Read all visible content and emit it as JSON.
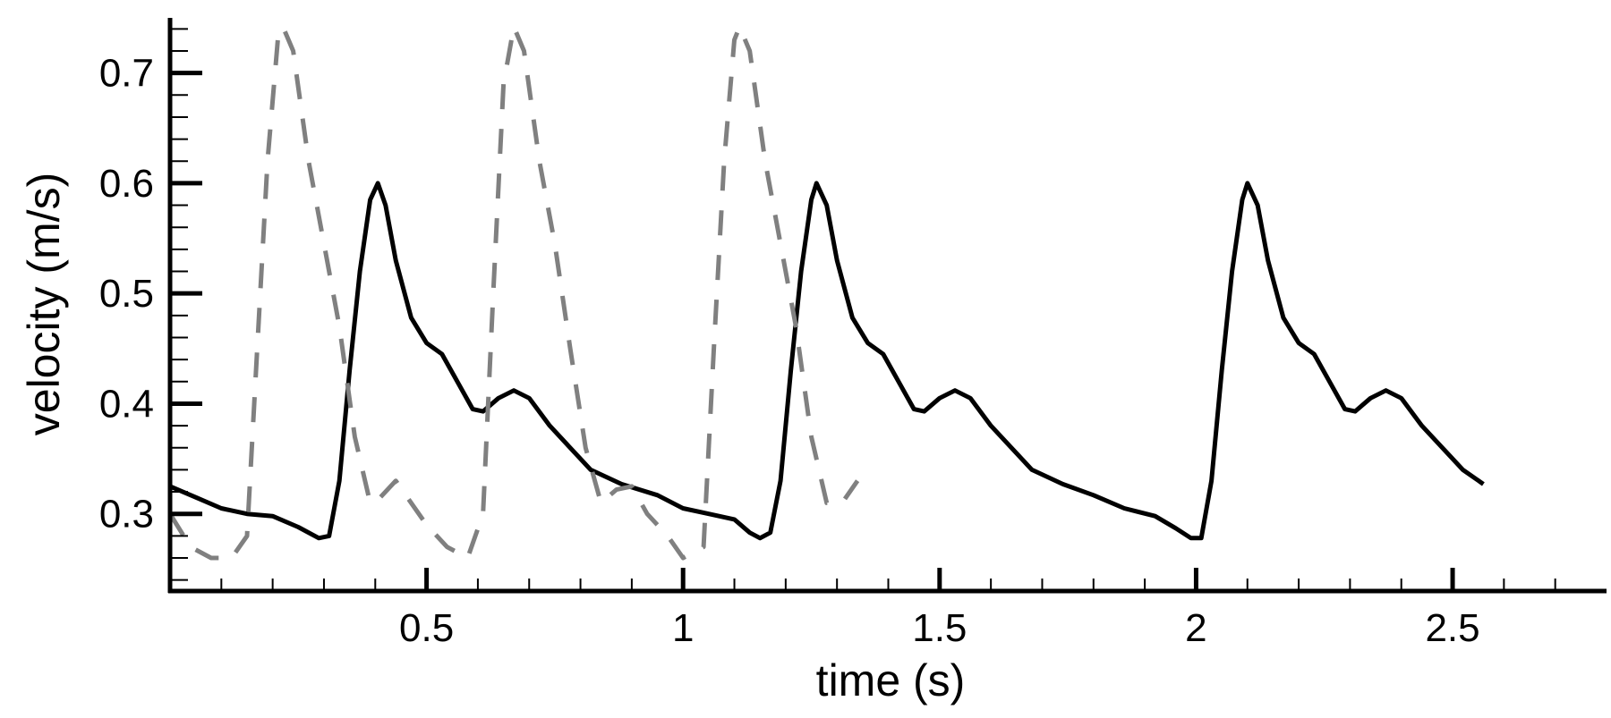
{
  "chart_data": {
    "type": "line",
    "title": "",
    "xlabel": "time (s)",
    "ylabel": "velocity (m/s)",
    "xlim": [
      0,
      2.8
    ],
    "ylim": [
      0.23,
      0.75
    ],
    "grid": false,
    "x_ticks": [
      {
        "value": 0.5,
        "label": "0.5"
      },
      {
        "value": 1,
        "label": "1"
      },
      {
        "value": 1.5,
        "label": "1.5"
      },
      {
        "value": 2,
        "label": "2"
      },
      {
        "value": 2.5,
        "label": "2.5"
      }
    ],
    "y_ticks": [
      {
        "value": 0.3,
        "label": "0.3"
      },
      {
        "value": 0.4,
        "label": "0.4"
      },
      {
        "value": 0.5,
        "label": "0.5"
      },
      {
        "value": 0.6,
        "label": "0.6"
      },
      {
        "value": 0.7,
        "label": "0.7"
      }
    ],
    "series": [
      {
        "style": "solid",
        "color": "#000000",
        "points": [
          [
            0.0,
            0.325
          ],
          [
            0.05,
            0.315
          ],
          [
            0.1,
            0.305
          ],
          [
            0.15,
            0.3
          ],
          [
            0.2,
            0.298
          ],
          [
            0.25,
            0.288
          ],
          [
            0.29,
            0.278
          ],
          [
            0.31,
            0.28
          ],
          [
            0.33,
            0.33
          ],
          [
            0.35,
            0.43
          ],
          [
            0.37,
            0.52
          ],
          [
            0.39,
            0.585
          ],
          [
            0.405,
            0.6
          ],
          [
            0.42,
            0.58
          ],
          [
            0.44,
            0.53
          ],
          [
            0.47,
            0.478
          ],
          [
            0.5,
            0.455
          ],
          [
            0.53,
            0.445
          ],
          [
            0.56,
            0.42
          ],
          [
            0.59,
            0.395
          ],
          [
            0.61,
            0.393
          ],
          [
            0.64,
            0.405
          ],
          [
            0.67,
            0.412
          ],
          [
            0.7,
            0.405
          ],
          [
            0.74,
            0.38
          ],
          [
            0.78,
            0.36
          ],
          [
            0.82,
            0.34
          ],
          [
            0.88,
            0.327
          ],
          [
            0.95,
            0.317
          ],
          [
            1.0,
            0.305
          ],
          [
            1.05,
            0.3
          ],
          [
            1.1,
            0.295
          ],
          [
            1.13,
            0.283
          ],
          [
            1.15,
            0.278
          ],
          [
            1.17,
            0.283
          ],
          [
            1.19,
            0.33
          ],
          [
            1.21,
            0.43
          ],
          [
            1.23,
            0.52
          ],
          [
            1.25,
            0.585
          ],
          [
            1.26,
            0.6
          ],
          [
            1.28,
            0.58
          ],
          [
            1.3,
            0.53
          ],
          [
            1.33,
            0.478
          ],
          [
            1.36,
            0.455
          ],
          [
            1.39,
            0.445
          ],
          [
            1.42,
            0.42
          ],
          [
            1.45,
            0.395
          ],
          [
            1.47,
            0.393
          ],
          [
            1.5,
            0.405
          ],
          [
            1.53,
            0.412
          ],
          [
            1.56,
            0.405
          ],
          [
            1.6,
            0.38
          ],
          [
            1.64,
            0.36
          ],
          [
            1.68,
            0.34
          ],
          [
            1.74,
            0.327
          ],
          [
            1.8,
            0.317
          ],
          [
            1.86,
            0.305
          ],
          [
            1.92,
            0.298
          ],
          [
            1.96,
            0.287
          ],
          [
            1.99,
            0.278
          ],
          [
            2.01,
            0.278
          ],
          [
            2.03,
            0.33
          ],
          [
            2.05,
            0.43
          ],
          [
            2.07,
            0.52
          ],
          [
            2.09,
            0.585
          ],
          [
            2.1,
            0.6
          ],
          [
            2.12,
            0.58
          ],
          [
            2.14,
            0.53
          ],
          [
            2.17,
            0.478
          ],
          [
            2.2,
            0.455
          ],
          [
            2.23,
            0.445
          ],
          [
            2.26,
            0.42
          ],
          [
            2.29,
            0.395
          ],
          [
            2.31,
            0.393
          ],
          [
            2.34,
            0.405
          ],
          [
            2.37,
            0.412
          ],
          [
            2.4,
            0.405
          ],
          [
            2.44,
            0.38
          ],
          [
            2.48,
            0.36
          ],
          [
            2.52,
            0.34
          ],
          [
            2.56,
            0.327
          ]
        ]
      },
      {
        "style": "dashed",
        "color": "#808080",
        "points": [
          [
            0.0,
            0.3
          ],
          [
            0.04,
            0.27
          ],
          [
            0.08,
            0.26
          ],
          [
            0.12,
            0.26
          ],
          [
            0.15,
            0.28
          ],
          [
            0.17,
            0.45
          ],
          [
            0.19,
            0.62
          ],
          [
            0.21,
            0.73
          ],
          [
            0.22,
            0.742
          ],
          [
            0.24,
            0.72
          ],
          [
            0.27,
            0.62
          ],
          [
            0.3,
            0.545
          ],
          [
            0.33,
            0.47
          ],
          [
            0.36,
            0.37
          ],
          [
            0.39,
            0.31
          ],
          [
            0.41,
            0.315
          ],
          [
            0.44,
            0.33
          ],
          [
            0.47,
            0.31
          ],
          [
            0.5,
            0.29
          ],
          [
            0.54,
            0.27
          ],
          [
            0.58,
            0.26
          ],
          [
            0.61,
            0.3
          ],
          [
            0.63,
            0.5
          ],
          [
            0.65,
            0.69
          ],
          [
            0.67,
            0.742
          ],
          [
            0.69,
            0.72
          ],
          [
            0.72,
            0.62
          ],
          [
            0.75,
            0.545
          ],
          [
            0.78,
            0.45
          ],
          [
            0.81,
            0.36
          ],
          [
            0.84,
            0.31
          ],
          [
            0.87,
            0.322
          ],
          [
            0.9,
            0.325
          ],
          [
            0.93,
            0.3
          ],
          [
            0.97,
            0.28
          ],
          [
            1.0,
            0.26
          ],
          [
            1.04,
            0.27
          ],
          [
            1.06,
            0.45
          ],
          [
            1.08,
            0.62
          ],
          [
            1.1,
            0.73
          ],
          [
            1.11,
            0.742
          ],
          [
            1.13,
            0.72
          ],
          [
            1.16,
            0.62
          ],
          [
            1.19,
            0.545
          ],
          [
            1.22,
            0.47
          ],
          [
            1.25,
            0.37
          ],
          [
            1.28,
            0.31
          ],
          [
            1.31,
            0.31
          ],
          [
            1.34,
            0.33
          ]
        ]
      }
    ]
  }
}
